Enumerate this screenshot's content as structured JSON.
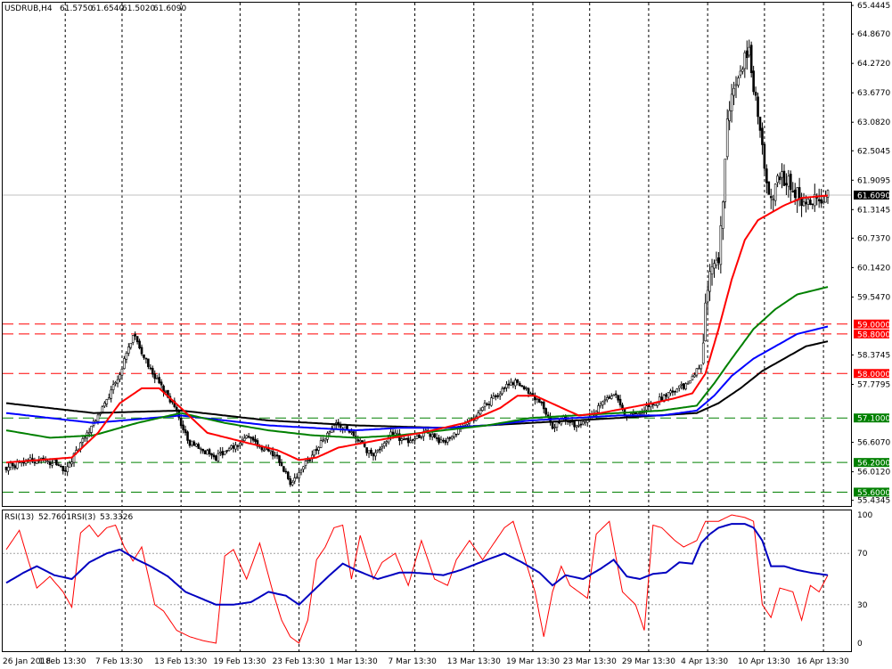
{
  "header": {
    "symbol": "USDRUB,H4",
    "open": "61.5750",
    "high": "61.6540",
    "low": "61.5020",
    "close": "61.6090"
  },
  "rsi_header": {
    "label1": "RSI(13)",
    "value1": "52.7601",
    "label2": "RSI(3)",
    "value2": "53.3326"
  },
  "colors": {
    "candle": "#000000",
    "ma_fast": "#ff0000",
    "ma_mid": "#008000",
    "ma_blue": "#0000ff",
    "ma_slow": "#000000",
    "resistance": "#ff0000",
    "support": "#008000",
    "rsi_slow": "#0000c0",
    "rsi_fast": "#ff0000"
  },
  "chart_data": [
    {
      "type": "candlestick",
      "title": "USDRUB,H4",
      "price_axis_ticks": [
        "65.4445",
        "64.8670",
        "64.2720",
        "63.6770",
        "63.0820",
        "62.5045",
        "61.9095",
        "61.3145",
        "60.7370",
        "60.1420",
        "59.5470",
        "58.3745",
        "57.7795",
        "56.6070",
        "56.0120",
        "55.4345"
      ],
      "ylim": [
        55.32,
        65.5
      ],
      "time_axis_ticks": [
        "26 Jan 2018",
        "1 Feb 13:30",
        "7 Feb 13:30",
        "13 Feb 13:30",
        "19 Feb 13:30",
        "23 Feb 13:30",
        "1 Mar 13:30",
        "7 Mar 13:30",
        "13 Mar 13:30",
        "19 Mar 13:30",
        "23 Mar 13:30",
        "29 Mar 13:30",
        "4 Apr 13:30",
        "10 Apr 13:30",
        "16 Apr 13:30"
      ],
      "grid": "vertical-dashed",
      "current_price": {
        "value": 61.609,
        "label": "61.6090"
      },
      "levels": [
        {
          "value": 59.0,
          "label": "59.0000",
          "kind": "resistance"
        },
        {
          "value": 58.8,
          "label": "58.8000",
          "kind": "resistance"
        },
        {
          "value": 58.0,
          "label": "58.0000",
          "kind": "resistance"
        },
        {
          "value": 57.1,
          "label": "57.1000",
          "kind": "support"
        },
        {
          "value": 56.2,
          "label": "56.2000",
          "kind": "support"
        },
        {
          "value": 55.6,
          "label": "55.6000",
          "kind": "support"
        }
      ],
      "close_anchors": [
        [
          0,
          56.1
        ],
        [
          12,
          56.25
        ],
        [
          22,
          56.2
        ],
        [
          27,
          56.05
        ],
        [
          36,
          56.7
        ],
        [
          44,
          57.3
        ],
        [
          52,
          58.0
        ],
        [
          58,
          58.8
        ],
        [
          62,
          58.4
        ],
        [
          70,
          57.8
        ],
        [
          76,
          57.4
        ],
        [
          84,
          56.6
        ],
        [
          96,
          56.3
        ],
        [
          110,
          56.7
        ],
        [
          124,
          56.3
        ],
        [
          130,
          55.8
        ],
        [
          134,
          56.0
        ],
        [
          138,
          56.25
        ],
        [
          144,
          56.6
        ],
        [
          152,
          57.0
        ],
        [
          160,
          56.7
        ],
        [
          168,
          56.3
        ],
        [
          176,
          56.8
        ],
        [
          184,
          56.6
        ],
        [
          192,
          56.8
        ],
        [
          200,
          56.6
        ],
        [
          210,
          56.95
        ],
        [
          218,
          57.3
        ],
        [
          228,
          57.7
        ],
        [
          234,
          57.85
        ],
        [
          240,
          57.6
        ],
        [
          246,
          57.3
        ],
        [
          250,
          56.9
        ],
        [
          254,
          57.1
        ],
        [
          262,
          56.9
        ],
        [
          270,
          57.25
        ],
        [
          278,
          57.6
        ],
        [
          284,
          57.1
        ],
        [
          290,
          57.2
        ],
        [
          296,
          57.4
        ],
        [
          304,
          57.6
        ],
        [
          312,
          57.8
        ],
        [
          318,
          58.2
        ],
        [
          320,
          59.3
        ],
        [
          322,
          60.0
        ],
        [
          324,
          60.1
        ],
        [
          326,
          60.2
        ],
        [
          328,
          61.6
        ],
        [
          330,
          63.2
        ],
        [
          332,
          63.6
        ],
        [
          336,
          64.2
        ],
        [
          340,
          64.6
        ],
        [
          342,
          63.8
        ],
        [
          346,
          62.5
        ],
        [
          350,
          61.5
        ],
        [
          354,
          62.0
        ],
        [
          360,
          61.8
        ],
        [
          364,
          61.4
        ],
        [
          368,
          61.4
        ],
        [
          372,
          61.55
        ],
        [
          376,
          61.6
        ]
      ],
      "ma_fast_anchors": [
        [
          0,
          56.2
        ],
        [
          30,
          56.3
        ],
        [
          42,
          56.8
        ],
        [
          52,
          57.4
        ],
        [
          62,
          57.7
        ],
        [
          70,
          57.7
        ],
        [
          80,
          57.3
        ],
        [
          92,
          56.8
        ],
        [
          110,
          56.6
        ],
        [
          124,
          56.45
        ],
        [
          134,
          56.25
        ],
        [
          142,
          56.3
        ],
        [
          152,
          56.5
        ],
        [
          170,
          56.65
        ],
        [
          190,
          56.8
        ],
        [
          210,
          57.0
        ],
        [
          226,
          57.3
        ],
        [
          234,
          57.55
        ],
        [
          242,
          57.55
        ],
        [
          252,
          57.35
        ],
        [
          262,
          57.15
        ],
        [
          272,
          57.2
        ],
        [
          284,
          57.3
        ],
        [
          296,
          57.4
        ],
        [
          306,
          57.5
        ],
        [
          314,
          57.6
        ],
        [
          320,
          58.0
        ],
        [
          326,
          58.9
        ],
        [
          332,
          59.9
        ],
        [
          338,
          60.7
        ],
        [
          344,
          61.1
        ],
        [
          350,
          61.25
        ],
        [
          356,
          61.4
        ],
        [
          364,
          61.55
        ],
        [
          376,
          61.6
        ]
      ],
      "ma_mid_anchors": [
        [
          0,
          56.85
        ],
        [
          20,
          56.7
        ],
        [
          40,
          56.75
        ],
        [
          60,
          57.0
        ],
        [
          80,
          57.2
        ],
        [
          100,
          57.0
        ],
        [
          120,
          56.85
        ],
        [
          140,
          56.75
        ],
        [
          160,
          56.7
        ],
        [
          180,
          56.75
        ],
        [
          200,
          56.85
        ],
        [
          220,
          56.95
        ],
        [
          240,
          57.1
        ],
        [
          260,
          57.15
        ],
        [
          280,
          57.2
        ],
        [
          300,
          57.25
        ],
        [
          316,
          57.35
        ],
        [
          324,
          57.8
        ],
        [
          332,
          58.3
        ],
        [
          342,
          58.9
        ],
        [
          352,
          59.3
        ],
        [
          362,
          59.6
        ],
        [
          376,
          59.75
        ]
      ],
      "ma_blue_anchors": [
        [
          0,
          57.2
        ],
        [
          40,
          57.0
        ],
        [
          80,
          57.15
        ],
        [
          100,
          57.05
        ],
        [
          120,
          56.95
        ],
        [
          140,
          56.9
        ],
        [
          160,
          56.85
        ],
        [
          180,
          56.9
        ],
        [
          200,
          56.9
        ],
        [
          220,
          56.95
        ],
        [
          240,
          57.05
        ],
        [
          260,
          57.1
        ],
        [
          280,
          57.15
        ],
        [
          300,
          57.15
        ],
        [
          316,
          57.25
        ],
        [
          324,
          57.55
        ],
        [
          332,
          57.95
        ],
        [
          342,
          58.3
        ],
        [
          352,
          58.55
        ],
        [
          362,
          58.8
        ],
        [
          376,
          58.95
        ]
      ],
      "ma_slow_anchors": [
        [
          0,
          57.4
        ],
        [
          40,
          57.2
        ],
        [
          80,
          57.25
        ],
        [
          120,
          57.05
        ],
        [
          160,
          56.95
        ],
        [
          200,
          56.9
        ],
        [
          240,
          57.0
        ],
        [
          280,
          57.1
        ],
        [
          316,
          57.2
        ],
        [
          326,
          57.4
        ],
        [
          336,
          57.7
        ],
        [
          346,
          58.05
        ],
        [
          356,
          58.3
        ],
        [
          366,
          58.55
        ],
        [
          376,
          58.65
        ]
      ],
      "bar_count": 377
    },
    {
      "type": "line",
      "title": "RSI(13) / RSI(3)",
      "ylim": [
        0,
        100
      ],
      "axis_ticks": [
        "100",
        "70",
        "30",
        "0"
      ],
      "levels": [
        70,
        30
      ],
      "series": [
        {
          "name": "RSI(13)",
          "anchors": [
            [
              0,
              47
            ],
            [
              8,
              55
            ],
            [
              14,
              60
            ],
            [
              22,
              53
            ],
            [
              30,
              50
            ],
            [
              38,
              63
            ],
            [
              46,
              70
            ],
            [
              52,
              73
            ],
            [
              60,
              65
            ],
            [
              66,
              60
            ],
            [
              74,
              52
            ],
            [
              82,
              40
            ],
            [
              96,
              30
            ],
            [
              104,
              30
            ],
            [
              112,
              32
            ],
            [
              120,
              40
            ],
            [
              128,
              37
            ],
            [
              134,
              30
            ],
            [
              140,
              40
            ],
            [
              148,
              53
            ],
            [
              154,
              62
            ],
            [
              160,
              57
            ],
            [
              170,
              50
            ],
            [
              180,
              55
            ],
            [
              186,
              55
            ],
            [
              194,
              54
            ],
            [
              200,
              53
            ],
            [
              208,
              57
            ],
            [
              220,
              65
            ],
            [
              228,
              70
            ],
            [
              236,
              63
            ],
            [
              244,
              55
            ],
            [
              250,
              45
            ],
            [
              256,
              53
            ],
            [
              264,
              50
            ],
            [
              272,
              58
            ],
            [
              278,
              65
            ],
            [
              284,
              52
            ],
            [
              290,
              50
            ],
            [
              296,
              54
            ],
            [
              302,
              55
            ],
            [
              308,
              63
            ],
            [
              314,
              62
            ],
            [
              318,
              78
            ],
            [
              322,
              85
            ],
            [
              326,
              90
            ],
            [
              332,
              93
            ],
            [
              338,
              93
            ],
            [
              342,
              90
            ],
            [
              346,
              80
            ],
            [
              350,
              60
            ],
            [
              356,
              60
            ],
            [
              362,
              57
            ],
            [
              368,
              55
            ],
            [
              376,
              53
            ]
          ]
        },
        {
          "name": "RSI(3)",
          "anchors": [
            [
              0,
              73
            ],
            [
              6,
              88
            ],
            [
              10,
              65
            ],
            [
              14,
              43
            ],
            [
              20,
              52
            ],
            [
              26,
              40
            ],
            [
              30,
              28
            ],
            [
              34,
              86
            ],
            [
              38,
              92
            ],
            [
              42,
              83
            ],
            [
              46,
              90
            ],
            [
              50,
              92
            ],
            [
              54,
              75
            ],
            [
              58,
              64
            ],
            [
              62,
              75
            ],
            [
              68,
              30
            ],
            [
              72,
              25
            ],
            [
              78,
              10
            ],
            [
              84,
              5
            ],
            [
              90,
              2
            ],
            [
              96,
              0
            ],
            [
              100,
              68
            ],
            [
              104,
              73
            ],
            [
              110,
              50
            ],
            [
              116,
              78
            ],
            [
              122,
              40
            ],
            [
              126,
              18
            ],
            [
              130,
              5
            ],
            [
              134,
              0
            ],
            [
              138,
              18
            ],
            [
              142,
              65
            ],
            [
              146,
              75
            ],
            [
              150,
              90
            ],
            [
              154,
              92
            ],
            [
              158,
              50
            ],
            [
              162,
              84
            ],
            [
              168,
              50
            ],
            [
              172,
              63
            ],
            [
              178,
              70
            ],
            [
              184,
              45
            ],
            [
              190,
              80
            ],
            [
              196,
              50
            ],
            [
              202,
              45
            ],
            [
              206,
              65
            ],
            [
              212,
              80
            ],
            [
              218,
              65
            ],
            [
              224,
              80
            ],
            [
              228,
              90
            ],
            [
              232,
              95
            ],
            [
              236,
              73
            ],
            [
              242,
              40
            ],
            [
              246,
              5
            ],
            [
              250,
              40
            ],
            [
              254,
              60
            ],
            [
              258,
              45
            ],
            [
              262,
              40
            ],
            [
              266,
              35
            ],
            [
              270,
              85
            ],
            [
              276,
              95
            ],
            [
              282,
              40
            ],
            [
              288,
              30
            ],
            [
              292,
              10
            ],
            [
              296,
              92
            ],
            [
              300,
              90
            ],
            [
              306,
              80
            ],
            [
              310,
              75
            ],
            [
              316,
              80
            ],
            [
              320,
              95
            ],
            [
              326,
              95
            ],
            [
              332,
              100
            ],
            [
              338,
              98
            ],
            [
              342,
              95
            ],
            [
              346,
              30
            ],
            [
              350,
              20
            ],
            [
              354,
              43
            ],
            [
              360,
              40
            ],
            [
              364,
              18
            ],
            [
              368,
              45
            ],
            [
              372,
              40
            ],
            [
              376,
              53
            ]
          ]
        }
      ]
    }
  ]
}
